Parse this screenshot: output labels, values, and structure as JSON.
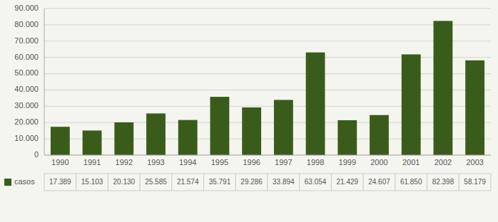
{
  "chart_data": {
    "type": "bar",
    "categories": [
      "1990",
      "1991",
      "1992",
      "1993",
      "1994",
      "1995",
      "1996",
      "1997",
      "1998",
      "1999",
      "2000",
      "2001",
      "2002",
      "2003"
    ],
    "series": [
      {
        "name": "casos",
        "color": "#3a5c1a",
        "values": [
          17389,
          15103,
          20130,
          25585,
          21574,
          35791,
          29286,
          33894,
          63054,
          21429,
          24607,
          61850,
          82398,
          58179
        ],
        "value_labels": [
          "17.389",
          "15.103",
          "20.130",
          "25.585",
          "21.574",
          "35.791",
          "29.286",
          "33.894",
          "63.054",
          "21.429",
          "24.607",
          "61.850",
          "82.398",
          "58.179"
        ]
      }
    ],
    "ylim": [
      0,
      90000
    ],
    "yticks": [
      0,
      {
        "value": 10000,
        "label": "10.000"
      },
      {
        "value": 20000,
        "label": "20.000"
      },
      {
        "value": 30000,
        "label": "30.000"
      },
      {
        "value": 40000,
        "label": "40.000"
      },
      {
        "value": 50000,
        "label": "50.000"
      },
      {
        "value": 60000,
        "label": "60.000"
      },
      {
        "value": 70000,
        "label": "70.000"
      },
      {
        "value": 80000,
        "label": "80.000"
      },
      {
        "value": 90000,
        "label": "90.000"
      }
    ],
    "grid": true,
    "data_labels": true,
    "legend": "bottom"
  }
}
